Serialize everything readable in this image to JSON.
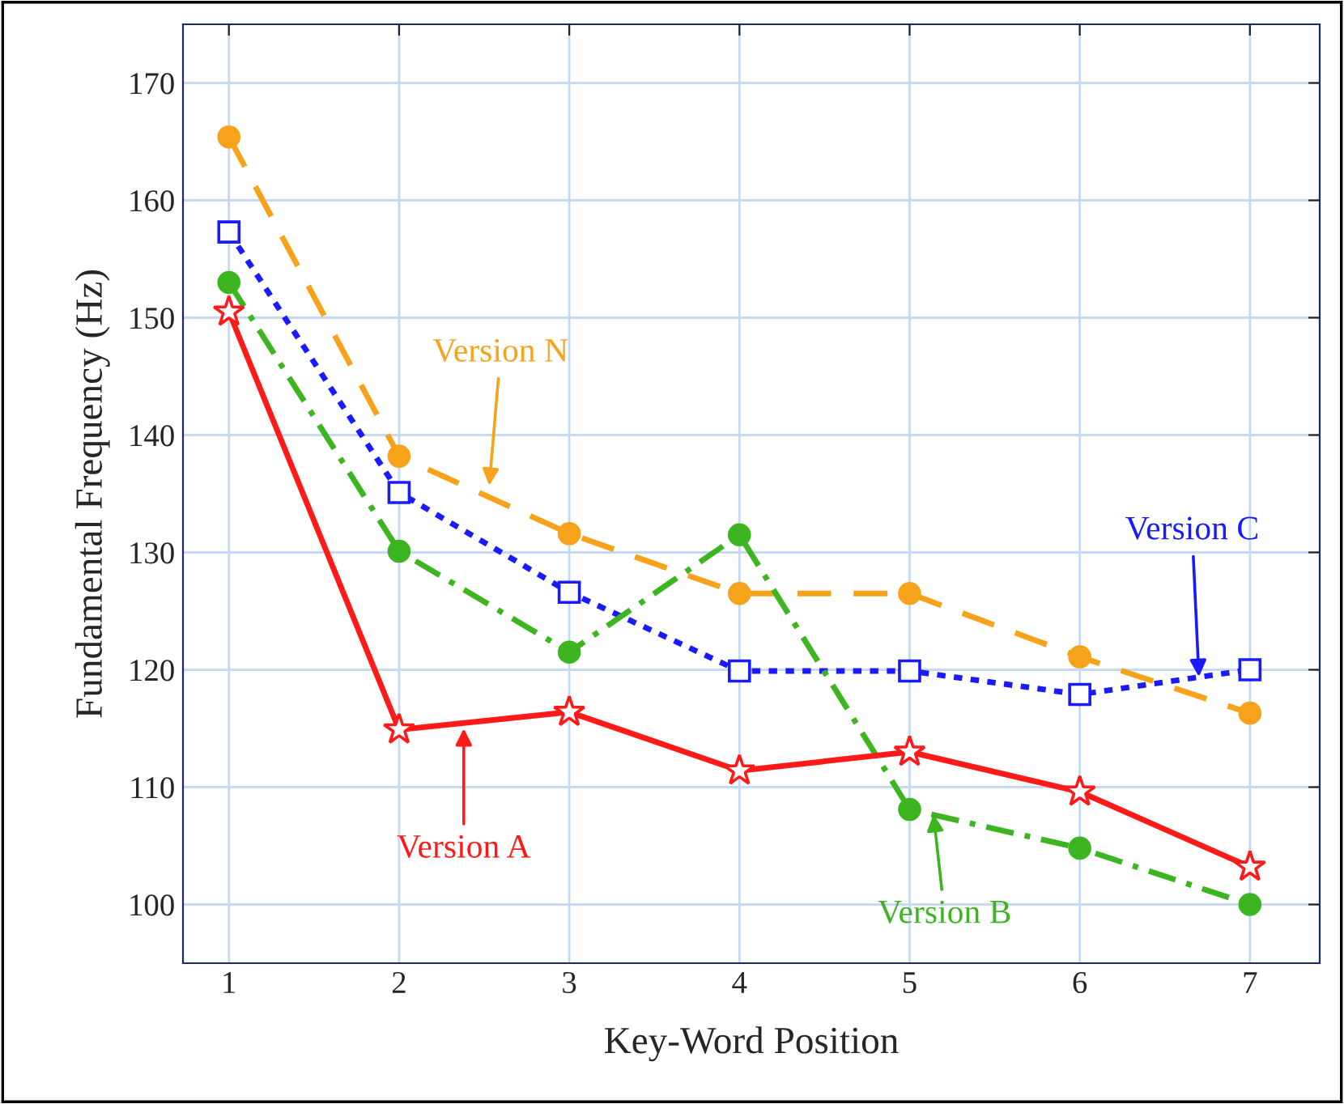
{
  "chart_data": {
    "type": "line",
    "xlabel": "Key-Word Position",
    "ylabel": "Fundamental Frequency (Hz)",
    "x": [
      1,
      2,
      3,
      4,
      5,
      6,
      7
    ],
    "xlim": [
      0.73,
      7.41
    ],
    "ylim": [
      95,
      175
    ],
    "xticks": [
      1,
      2,
      3,
      4,
      5,
      6,
      7
    ],
    "yticks": [
      100,
      110,
      120,
      130,
      140,
      150,
      160,
      170
    ],
    "grid": true,
    "series": [
      {
        "color": "#f7a21b",
        "marker": "circle",
        "line_style": "dashed",
        "values": [
          165.4,
          138.2,
          131.6,
          126.5,
          126.5,
          121.1,
          116.3
        ]
      },
      {
        "color": "#1a1aff",
        "marker": "square",
        "line_style": "dotted",
        "values": [
          157.3,
          135.1,
          126.6,
          119.9,
          119.9,
          117.9,
          120.0
        ]
      },
      {
        "color": "#3cb521",
        "marker": "circle",
        "line_style": "dashdot",
        "values": [
          153.0,
          130.1,
          121.5,
          131.5,
          108.1,
          104.8,
          100.0
        ]
      },
      {
        "color": "#ff1a1a",
        "marker": "star",
        "line_style": "solid",
        "values": [
          150.5,
          114.9,
          116.4,
          111.4,
          113.0,
          109.6,
          103.2
        ]
      }
    ],
    "annotations": [
      {
        "text": "Version N",
        "x": 2.53,
        "y": 135.7
      },
      {
        "text": "Version C",
        "x": 6.7,
        "y": 119.4
      },
      {
        "text": "Version B",
        "x": 5.14,
        "y": 107.7
      },
      {
        "text": "Version A",
        "x": 2.38,
        "y": 115.0
      }
    ]
  }
}
